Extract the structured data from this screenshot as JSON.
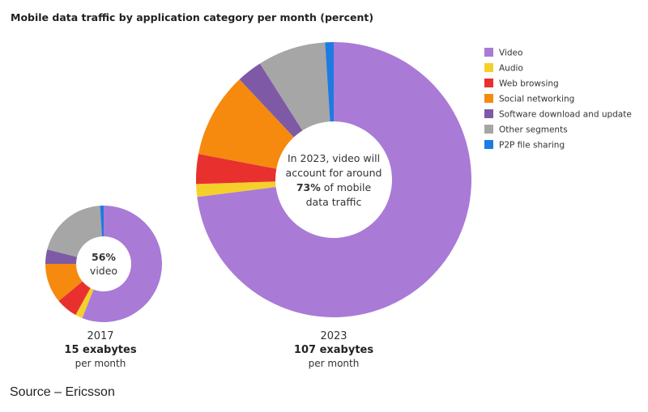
{
  "chart_data": {
    "type": "pie",
    "title": "Mobile data traffic by application category per month (percent)",
    "categories": [
      "Video",
      "Audio",
      "Web browsing",
      "Social networking",
      "Software download and update",
      "Other segments",
      "P2P file sharing"
    ],
    "colors": [
      "#A97AD6",
      "#F5D02B",
      "#E8312F",
      "#F58A0F",
      "#7E5AA6",
      "#A6A6A6",
      "#1E7BE0"
    ],
    "series": [
      {
        "name": "2017",
        "values": [
          56,
          2,
          6,
          11,
          4,
          20,
          1
        ],
        "center_bold": "56%",
        "center_text": "video",
        "year": "2017",
        "total": "15 exabytes",
        "per": "per month"
      },
      {
        "name": "2023",
        "values": [
          73,
          1.5,
          3.5,
          10,
          3,
          8,
          1
        ],
        "center_lines": [
          "In 2023, video will",
          "account for around"
        ],
        "center_bold": "73%",
        "center_after_bold": " of mobile",
        "center_last": "data traffic",
        "year": "2023",
        "total": "107 exabytes",
        "per": "per month"
      }
    ]
  },
  "source": "Source – Ericsson"
}
